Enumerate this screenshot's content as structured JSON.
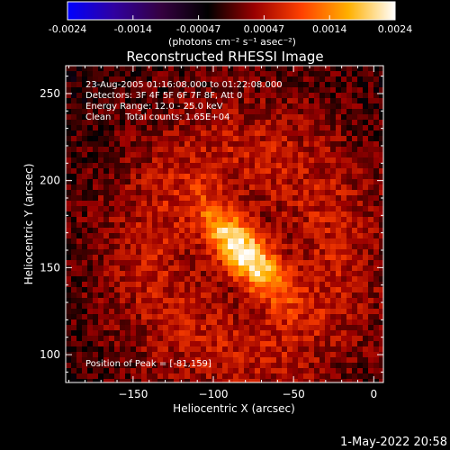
{
  "colorbar": {
    "ticks": [
      "-0.0024",
      "-0.0014",
      "-0.00047",
      "0.00047",
      "0.0014",
      "0.0024"
    ],
    "range": [
      -0.0024,
      0.0024
    ],
    "unit_label": "(photons cm⁻² s⁻¹ asec⁻²)",
    "stops": [
      "#0000ff",
      "#3000a0",
      "#350040",
      "#000000",
      "#9a0000",
      "#ff4000",
      "#ffb000",
      "#ffffff"
    ]
  },
  "chart_data": {
    "type": "heatmap",
    "title": "Reconstructed RHESSI Image",
    "xlabel": "Heliocentric X (arcsec)",
    "ylabel": "Heliocentric Y (arcsec)",
    "xlim": [
      -192,
      6
    ],
    "ylim": [
      84,
      266
    ],
    "xticks": [
      -150,
      -100,
      -50,
      0
    ],
    "yticks": [
      100,
      150,
      200,
      250
    ],
    "peak": {
      "x": -81,
      "y": 159
    },
    "info_lines": [
      "23-Aug-2005 01:16:08.000 to 01:22:08.000",
      "Detectors: 3F 4F 5F 6F 7F 8F, Att 0",
      "Energy Range: 12.0 - 25.0 keV",
      "Clean     Total counts: 1.65E+04"
    ],
    "peak_label": "Position of Peak = [-81,159]"
  },
  "footer": {
    "date": "1-May-2022 20:58"
  }
}
